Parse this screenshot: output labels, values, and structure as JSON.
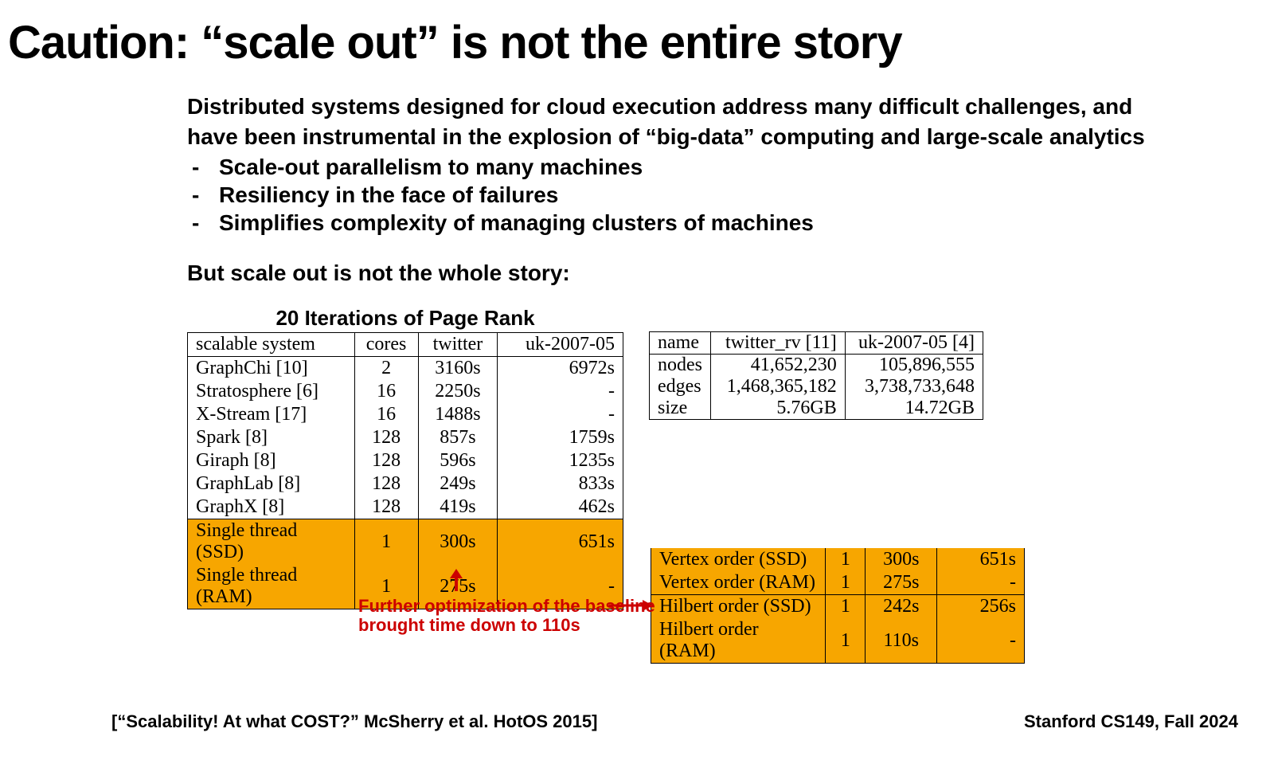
{
  "title": "Caution: “scale out” is not the entire story",
  "intro_line1": "Distributed systems designed for cloud execution address many difficult challenges, and",
  "intro_line2": "have been instrumental in the explosion of “big-data” computing and large-scale analytics",
  "bullets": {
    "b1": "Scale-out parallelism to many machines",
    "b2": "Resiliency in the face of failures",
    "b3": "Simplifies complexity of managing clusters of machines"
  },
  "subhead": "But scale out is not the whole story:",
  "main_table": {
    "title": "20 Iterations of Page Rank",
    "headers": {
      "h1": "scalable system",
      "h2": "cores",
      "h3": "twitter",
      "h4": "uk-2007-05"
    },
    "rows": [
      {
        "sys": "GraphChi [10]",
        "cores": "2",
        "tw": "3160s",
        "uk": "6972s",
        "hl": false
      },
      {
        "sys": "Stratosphere [6]",
        "cores": "16",
        "tw": "2250s",
        "uk": "-",
        "hl": false
      },
      {
        "sys": "X-Stream [17]",
        "cores": "16",
        "tw": "1488s",
        "uk": "-",
        "hl": false
      },
      {
        "sys": "Spark [8]",
        "cores": "128",
        "tw": "857s",
        "uk": "1759s",
        "hl": false
      },
      {
        "sys": "Giraph [8]",
        "cores": "128",
        "tw": "596s",
        "uk": "1235s",
        "hl": false
      },
      {
        "sys": "GraphLab [8]",
        "cores": "128",
        "tw": "249s",
        "uk": "833s",
        "hl": false
      },
      {
        "sys": "GraphX [8]",
        "cores": "128",
        "tw": "419s",
        "uk": "462s",
        "hl": false
      },
      {
        "sys": "Single thread (SSD)",
        "cores": "1",
        "tw": "300s",
        "uk": "651s",
        "hl": true
      },
      {
        "sys": "Single thread (RAM)",
        "cores": "1",
        "tw": "275s",
        "uk": "-",
        "hl": true
      }
    ]
  },
  "meta_table": {
    "headers": {
      "h1": "name",
      "h2": "twitter_rv [11]",
      "h3": "uk-2007-05 [4]"
    },
    "rows": [
      {
        "k": "nodes",
        "tw": "41,652,230",
        "uk": "105,896,555"
      },
      {
        "k": "edges",
        "tw": "1,468,365,182",
        "uk": "3,738,733,648"
      },
      {
        "k": "size",
        "tw": "5.76GB",
        "uk": "14.72GB"
      }
    ]
  },
  "order_table": {
    "rows": [
      {
        "sys": "Vertex order (SSD)",
        "cores": "1",
        "tw": "300s",
        "uk": "651s"
      },
      {
        "sys": "Vertex order (RAM)",
        "cores": "1",
        "tw": "275s",
        "uk": "-"
      },
      {
        "sys": "Hilbert order (SSD)",
        "cores": "1",
        "tw": "242s",
        "uk": "256s"
      },
      {
        "sys": "Hilbert order (RAM)",
        "cores": "1",
        "tw": "110s",
        "uk": "-"
      }
    ]
  },
  "annotation": {
    "line1": "Further optimization of the baseline",
    "line2": "brought time down to 110s"
  },
  "footer": {
    "left": "[“Scalability! At what COST?” McSherry et al. HotOS 2015]",
    "right": "Stanford CS149, Fall 2024"
  },
  "colors": {
    "highlight": "#f7a600",
    "annotation": "#cc0000",
    "text": "#000000",
    "background": "#ffffff"
  }
}
